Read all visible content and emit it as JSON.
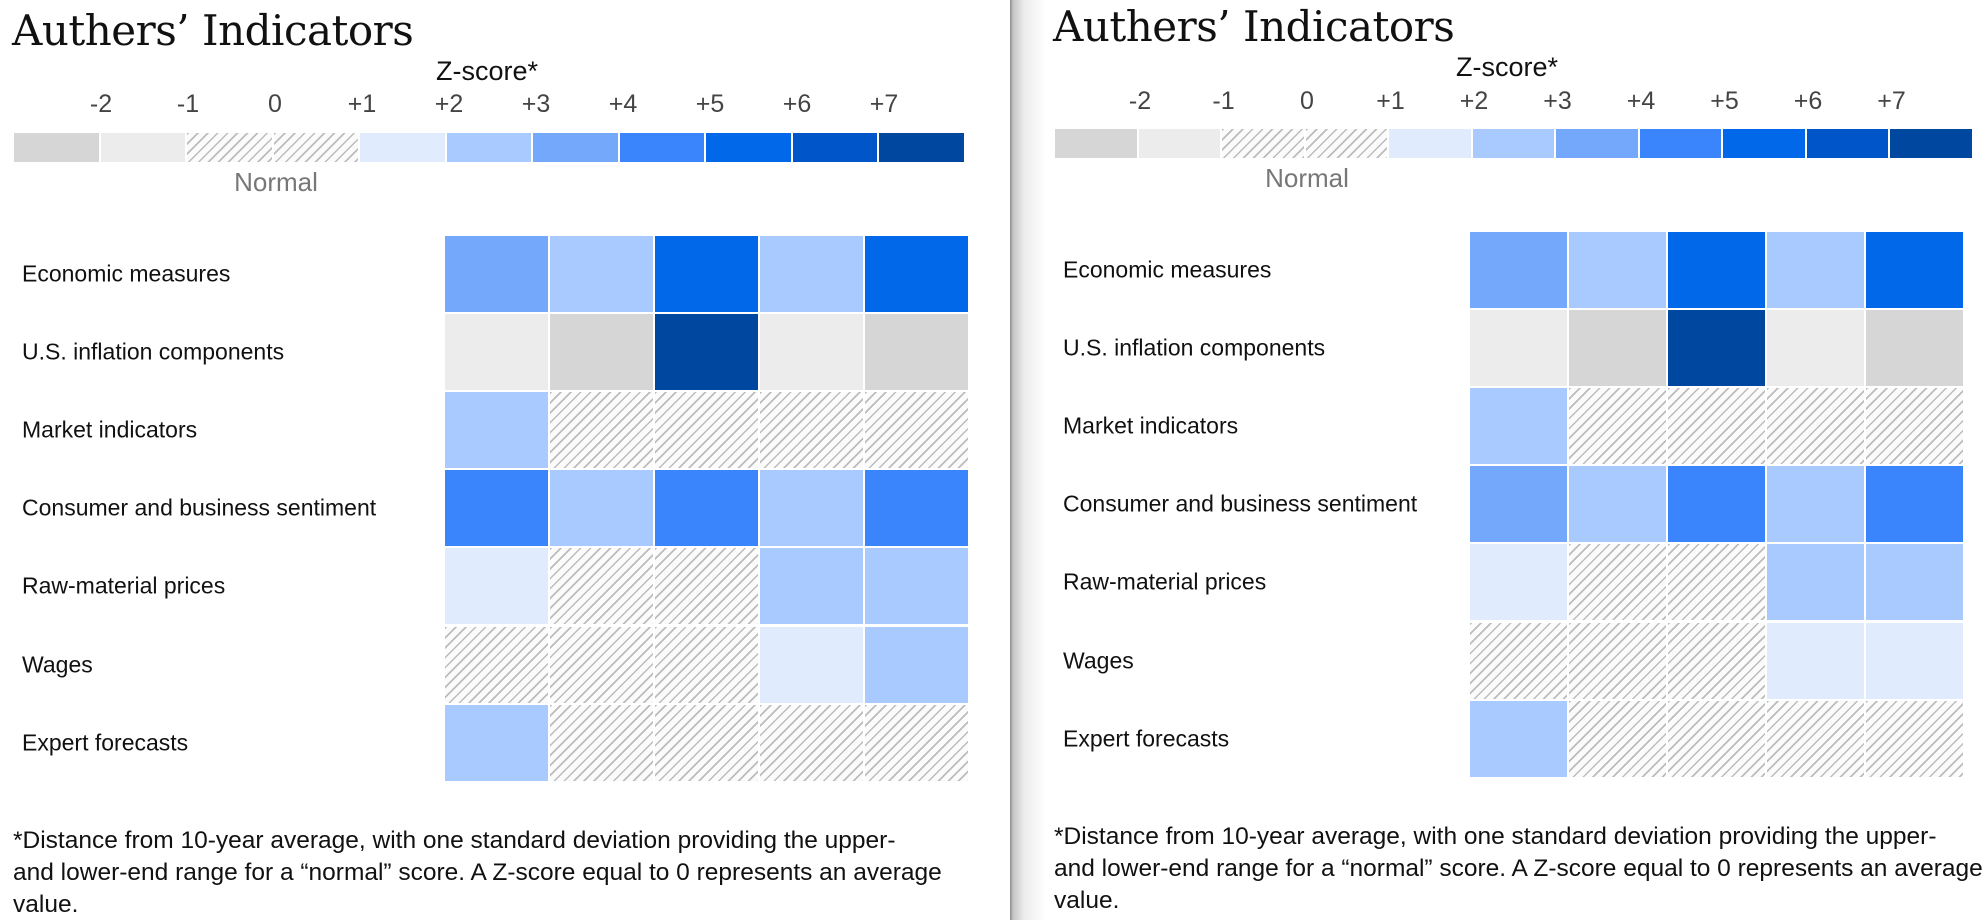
{
  "chart_data": [
    {
      "type": "heatmap",
      "title": "Authers’ Indicators",
      "legend": {
        "title": "Z-score*",
        "ticks": [
          "-2",
          "-1",
          "0",
          "+1",
          "+2",
          "+3",
          "+4",
          "+5",
          "+6",
          "+7"
        ],
        "normal_label": "Normal",
        "bins": [
          "-2",
          "-1",
          "normal",
          "normal",
          "+1",
          "+2",
          "+3",
          "+4",
          "+5",
          "+6",
          "+7"
        ]
      },
      "rows": [
        "Economic measures",
        "U.S. inflation components",
        "Market indicators",
        "Consumer and business sentiment",
        "Raw-material prices",
        "Wages",
        "Expert forecasts"
      ],
      "columns": 5,
      "values": [
        [
          "+3",
          "+2",
          "+5",
          "+2",
          "+5"
        ],
        [
          "-1",
          "-2",
          "+7",
          "-1",
          "-2"
        ],
        [
          "+2",
          "normal",
          "normal",
          "normal",
          "normal"
        ],
        [
          "+4",
          "+2",
          "+4",
          "+2",
          "+4"
        ],
        [
          "+1",
          "normal",
          "normal",
          "+2",
          "+2"
        ],
        [
          "normal",
          "normal",
          "normal",
          "+1",
          "+2"
        ],
        [
          "+2",
          "normal",
          "normal",
          "normal",
          "normal"
        ]
      ],
      "footnote": "*Distance from 10-year average, with one standard deviation providing the upper- and lower-end range for a “normal” score. A Z-score equal to 0 represents an average value."
    },
    {
      "type": "heatmap",
      "title": "Authers’ Indicators",
      "legend": {
        "title": "Z-score*",
        "ticks": [
          "-2",
          "-1",
          "0",
          "+1",
          "+2",
          "+3",
          "+4",
          "+5",
          "+6",
          "+7"
        ],
        "normal_label": "Normal",
        "bins": [
          "-2",
          "-1",
          "normal",
          "normal",
          "+1",
          "+2",
          "+3",
          "+4",
          "+5",
          "+6",
          "+7"
        ]
      },
      "rows": [
        "Economic measures",
        "U.S. inflation components",
        "Market indicators",
        "Consumer and business sentiment",
        "Raw-material prices",
        "Wages",
        "Expert forecasts"
      ],
      "columns": 5,
      "values": [
        [
          "+3",
          "+2",
          "+5",
          "+2",
          "+5"
        ],
        [
          "-1",
          "-2",
          "+7",
          "-1",
          "-2"
        ],
        [
          "+2",
          "normal",
          "normal",
          "normal",
          "normal"
        ],
        [
          "+3",
          "+2",
          "+4",
          "+2",
          "+4"
        ],
        [
          "+1",
          "normal",
          "normal",
          "+2",
          "+2"
        ],
        [
          "normal",
          "normal",
          "normal",
          "+1",
          "+1"
        ],
        [
          "+2",
          "normal",
          "normal",
          "normal",
          "normal"
        ]
      ],
      "footnote": "*Distance from 10-year average, with one standard deviation providing the upper- and lower-end range for a “normal” score. A Z-score equal to 0 represents an average value."
    }
  ],
  "colors": {
    "-2": "#d6d6d6",
    "-1": "#ececec",
    "+1": "#e0ecfd",
    "+2": "#a8caff",
    "+3": "#74a8fb",
    "+4": "#3b85fc",
    "+5": "#0068e9",
    "+6": "#0056c8",
    "+7": "#00479f",
    "normal": "hatch"
  }
}
